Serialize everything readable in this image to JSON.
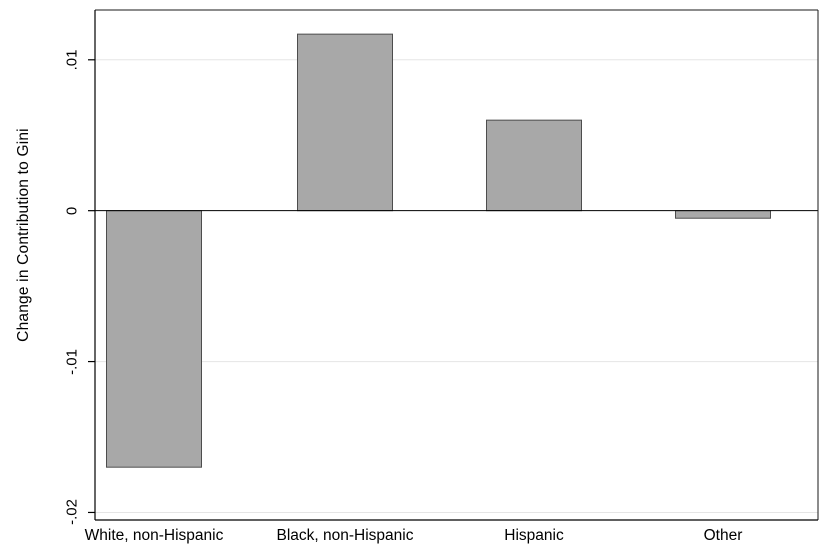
{
  "chart_data": {
    "type": "bar",
    "title": "",
    "xlabel": "",
    "ylabel": "Change in Contribution to Gini",
    "categories": [
      "White, non-Hispanic",
      "Black, non-Hispanic",
      "Hispanic",
      "Other"
    ],
    "values": [
      -0.017,
      0.0117,
      0.006,
      -0.0005
    ],
    "yticks": [
      0.01,
      0,
      -0.01,
      -0.02
    ],
    "ytick_labels": [
      ".01",
      "0",
      "-.01",
      "-.02"
    ],
    "ylim": [
      -0.0205,
      0.0133
    ],
    "grid": true,
    "legend": "none",
    "bar_color": "#a8a8a8",
    "bar_border_color": "#4d4d4d",
    "grid_color": "#e5e5e5",
    "axis_color": "#000000",
    "border_color": "#1a1a1a",
    "background_color": "#ffffff"
  }
}
